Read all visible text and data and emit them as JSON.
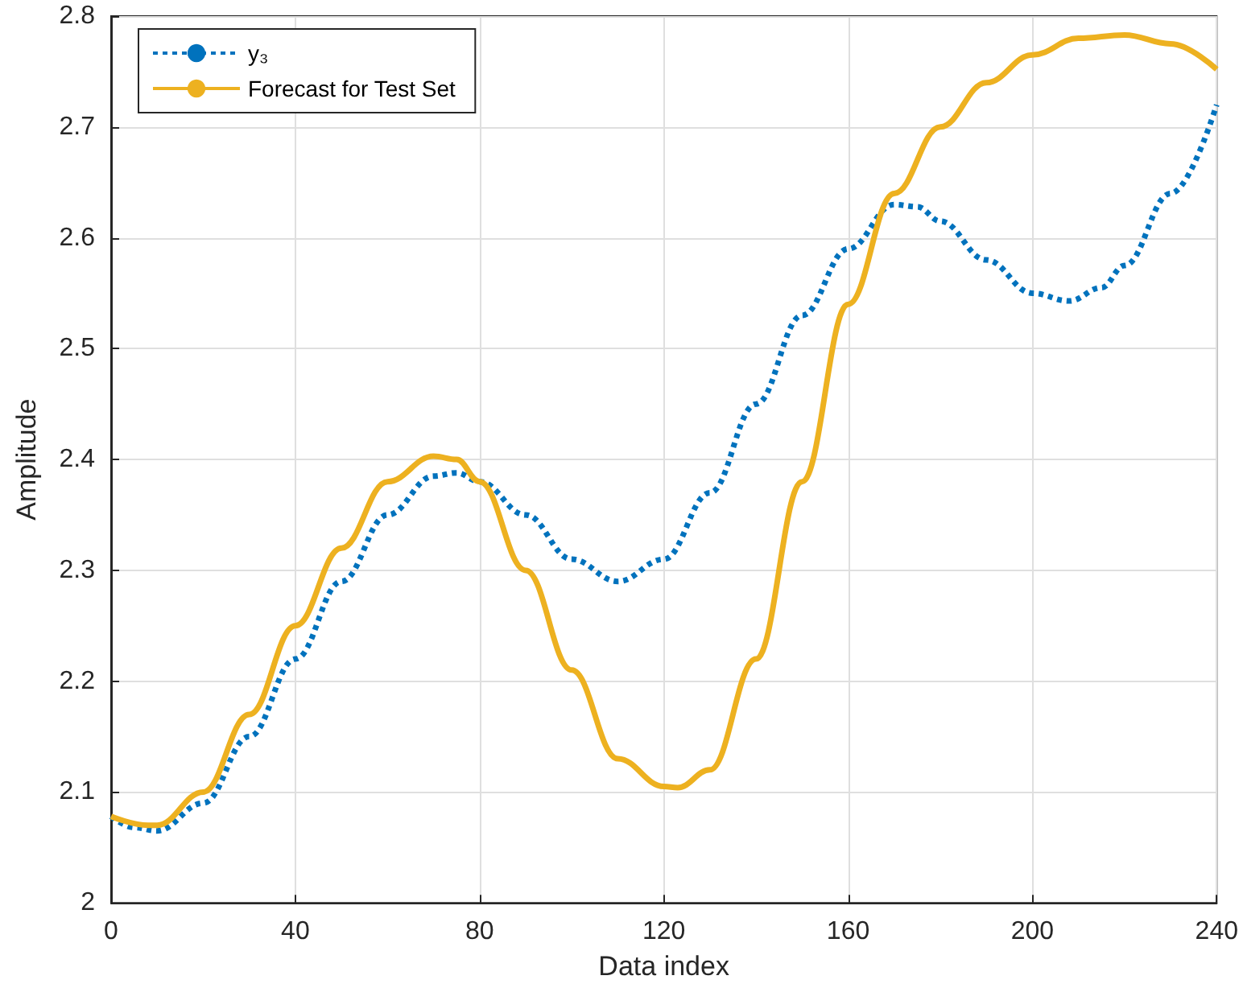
{
  "chart_data": {
    "type": "line",
    "xlabel": "Data index",
    "ylabel": "Amplitude",
    "xlim": [
      0,
      240
    ],
    "xticks": [
      0,
      40,
      80,
      120,
      160,
      200,
      240
    ],
    "ylim": [
      2,
      2.8
    ],
    "yticks": [
      2,
      2.1,
      2.2,
      2.3,
      2.4,
      2.5,
      2.6,
      2.7,
      2.8
    ],
    "grid": true,
    "legend": "top left",
    "marker": "none",
    "series": [
      {
        "name": "y₃",
        "color": "#0072bd",
        "line_style": "dotted",
        "x": [
          0,
          5,
          10,
          20,
          30,
          40,
          50,
          60,
          70,
          75,
          80,
          90,
          100,
          110,
          120,
          130,
          140,
          150,
          160,
          170,
          175,
          180,
          190,
          200,
          208,
          215,
          220,
          230,
          240
        ],
        "values": [
          2.078,
          2.068,
          2.065,
          2.09,
          2.15,
          2.22,
          2.29,
          2.35,
          2.385,
          2.388,
          2.38,
          2.35,
          2.31,
          2.29,
          2.31,
          2.37,
          2.45,
          2.53,
          2.59,
          2.63,
          2.628,
          2.615,
          2.58,
          2.55,
          2.543,
          2.555,
          2.575,
          2.64,
          2.72
        ]
      },
      {
        "name": "Forecast for Test Set",
        "color": "#edb120",
        "line_style": "solid",
        "x": [
          0,
          8,
          10,
          20,
          30,
          40,
          50,
          60,
          70,
          75,
          80,
          90,
          100,
          110,
          120,
          123,
          130,
          140,
          150,
          160,
          170,
          180,
          190,
          200,
          210,
          220,
          230,
          240
        ],
        "values": [
          2.078,
          2.07,
          2.07,
          2.1,
          2.17,
          2.25,
          2.32,
          2.38,
          2.403,
          2.4,
          2.38,
          2.3,
          2.21,
          2.13,
          2.105,
          2.104,
          2.12,
          2.22,
          2.38,
          2.54,
          2.64,
          2.7,
          2.74,
          2.765,
          2.78,
          2.783,
          2.775,
          2.752
        ]
      }
    ]
  }
}
